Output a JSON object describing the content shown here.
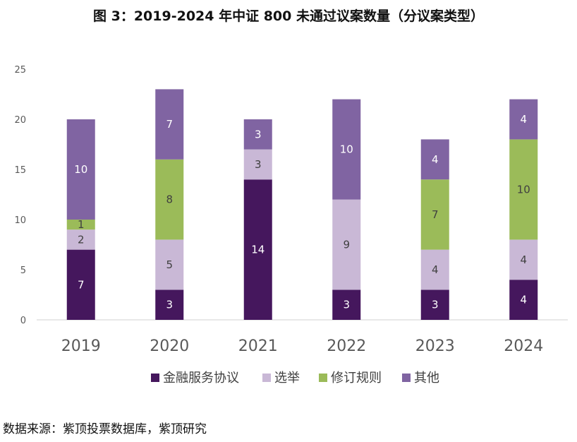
{
  "figure": {
    "title": "图 3：2019-2024 年中证 800 未通过议案数量（分议案类型）",
    "source": "数据来源：紫顶投票数据库，紫顶研究"
  },
  "chart_data": {
    "type": "bar",
    "stacked": true,
    "categories": [
      "2019",
      "2020",
      "2021",
      "2022",
      "2023",
      "2024"
    ],
    "series": [
      {
        "name": "金融服务协议",
        "color": "#45175d",
        "values": [
          7,
          3,
          14,
          3,
          3,
          4
        ]
      },
      {
        "name": "选举",
        "color": "#c9b8d6",
        "values": [
          2,
          5,
          3,
          9,
          4,
          4
        ]
      },
      {
        "name": "修订规则",
        "color": "#9bbb59",
        "values": [
          1,
          8,
          0,
          0,
          7,
          10
        ]
      },
      {
        "name": "其他",
        "color": "#8064a2",
        "values": [
          10,
          7,
          3,
          10,
          4,
          4
        ]
      }
    ],
    "ylim": [
      0,
      25
    ],
    "yticks": [
      0,
      5,
      10,
      15,
      20,
      25
    ],
    "xlabel": "",
    "ylabel": "",
    "grid": false,
    "legend": "bottom",
    "data_labels": true
  }
}
